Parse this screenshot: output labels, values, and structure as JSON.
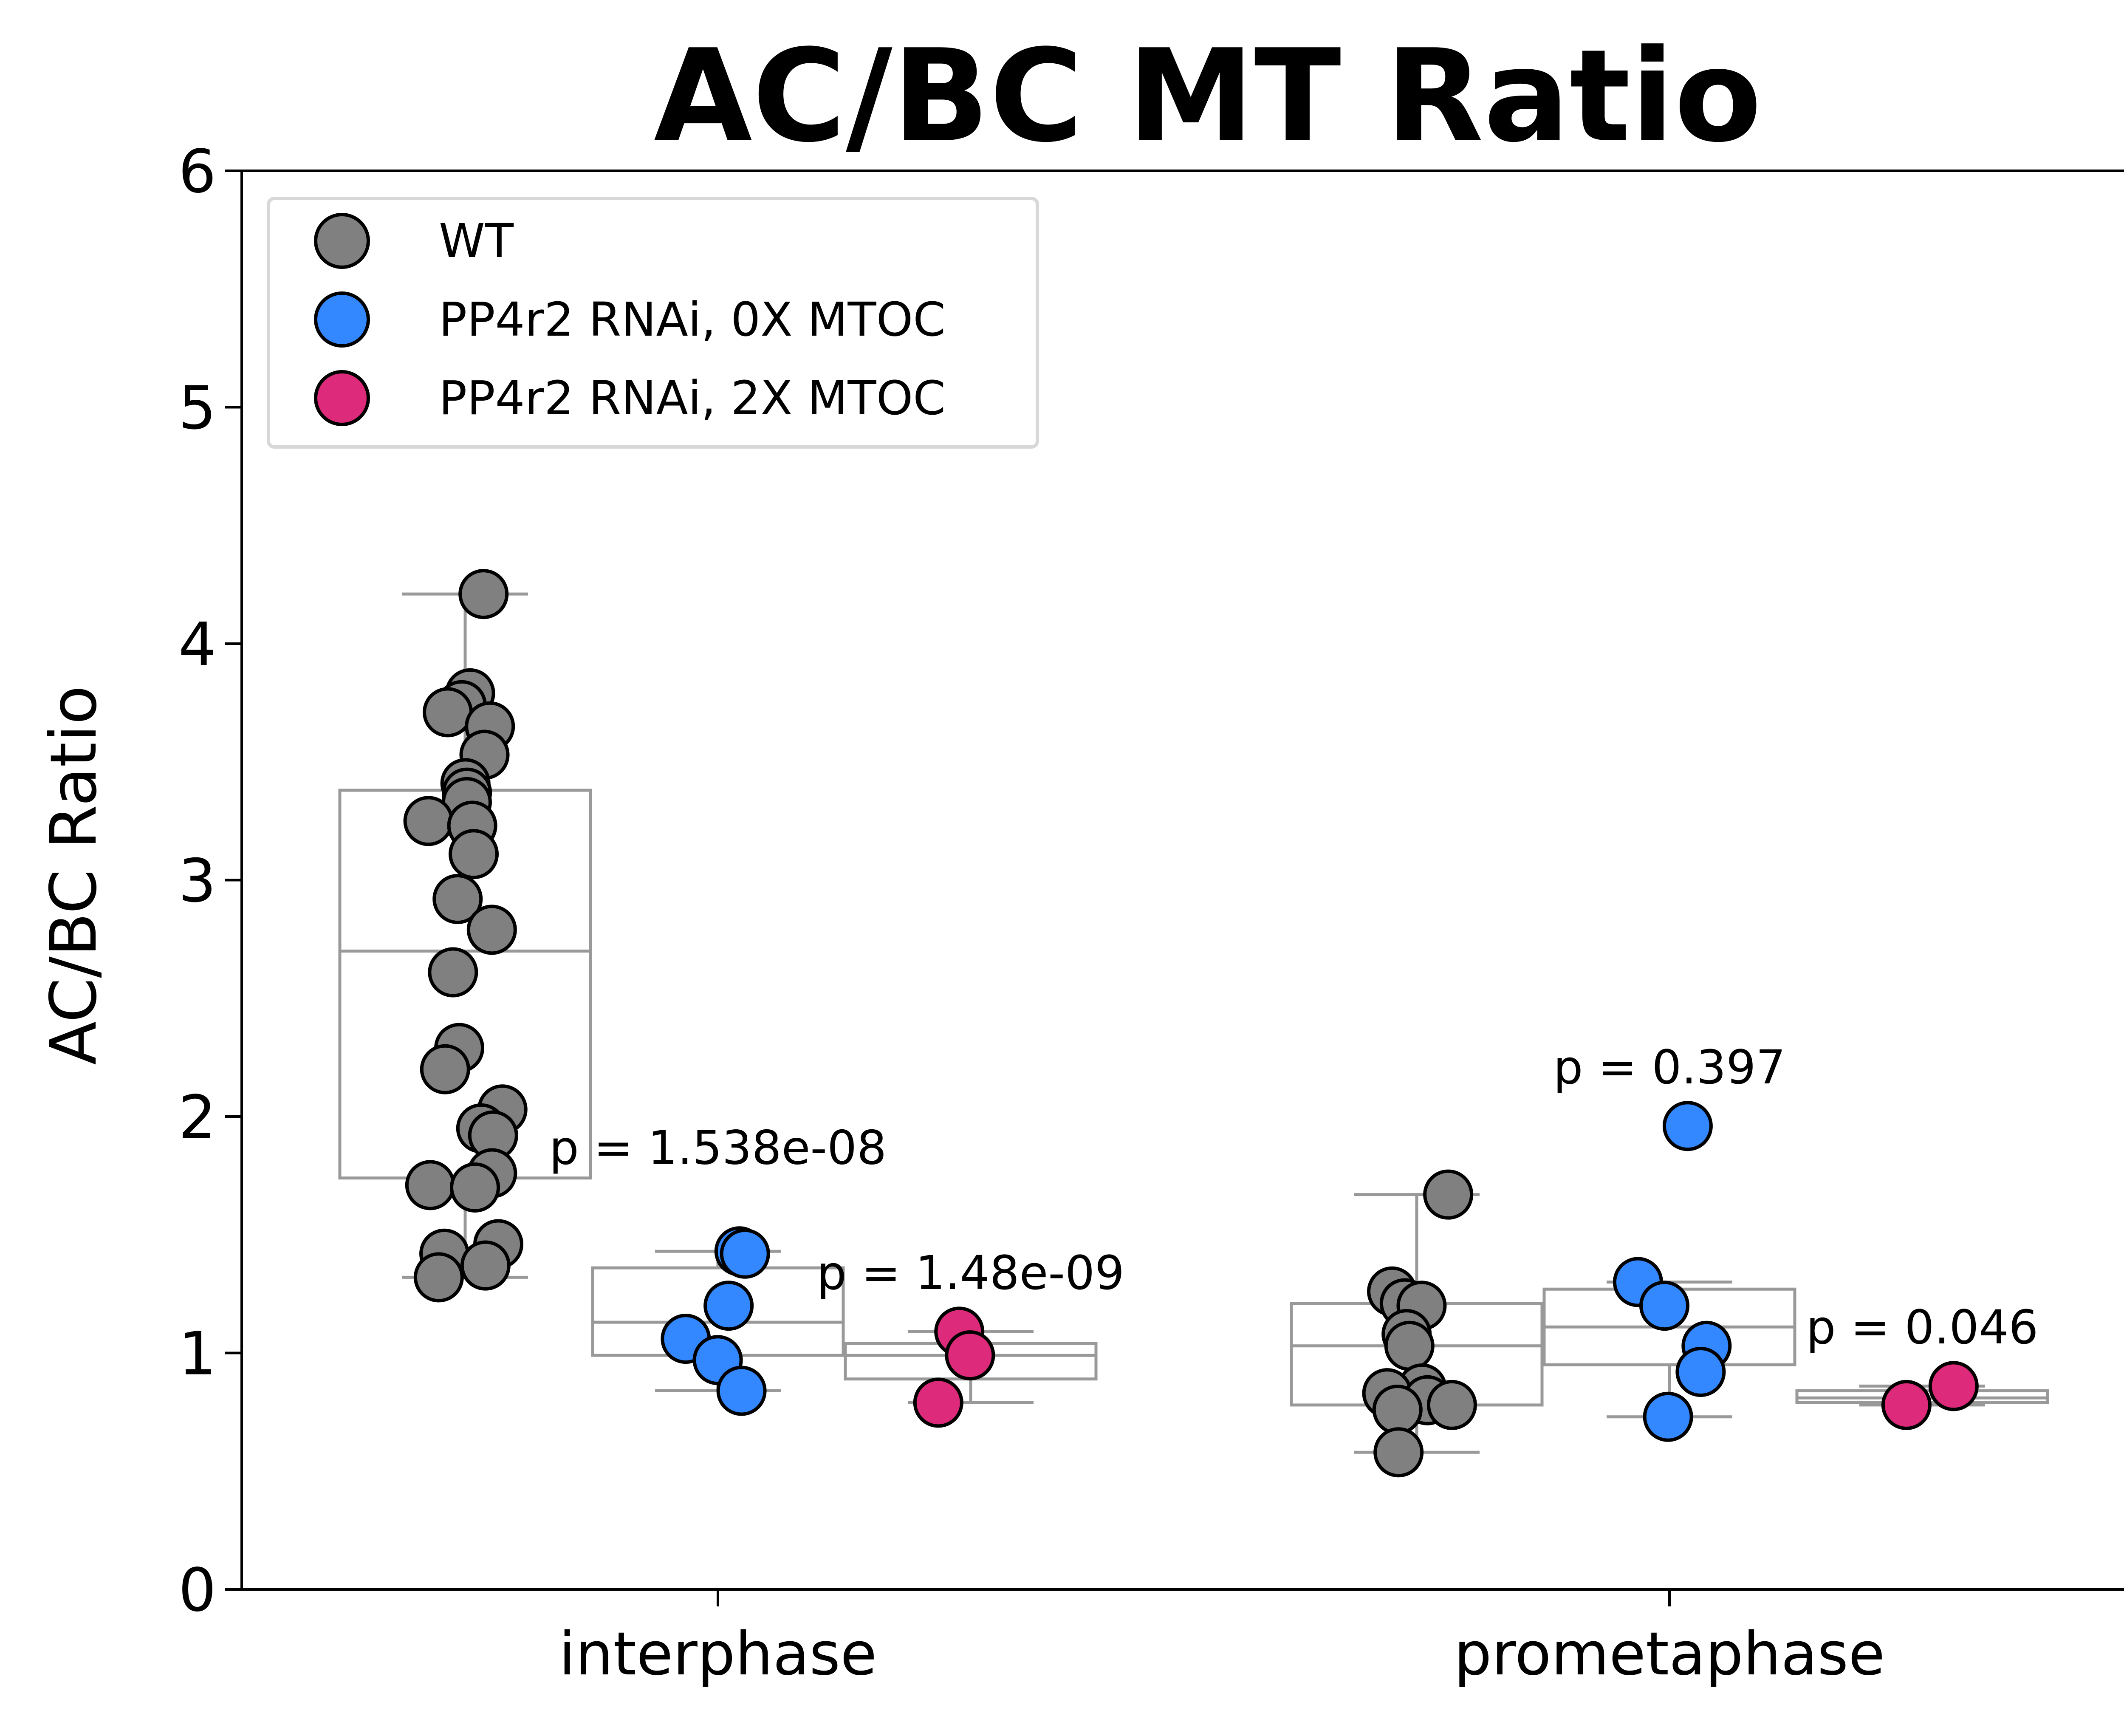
{
  "chart_data": {
    "type": "box",
    "title": "AC/BC MT Ratio",
    "xlabel": "",
    "ylabel": "AC/BC Ratio",
    "ylim": [
      0,
      6
    ],
    "yticks": [
      "0",
      "1",
      "2",
      "3",
      "4",
      "5",
      "6"
    ],
    "categories": [
      "interphase",
      "prometaphase"
    ],
    "legend": {
      "placement": "top-left",
      "entries": [
        {
          "name": "WT",
          "color": "#808080"
        },
        {
          "name": "PP4r2 RNAi, 0X MTOC",
          "color": "#3388ff"
        },
        {
          "name": "PP4r2 RNAi, 2X MTOC",
          "color": "#dd2a7b"
        }
      ]
    },
    "series": [
      {
        "name": "WT",
        "color": "#808080",
        "groups": [
          {
            "category": "interphase",
            "box": {
              "min": 1.32,
              "q1": 1.74,
              "median": 2.7,
              "q3": 3.38,
              "max": 4.21
            },
            "points": [
              4.21,
              3.79,
              3.74,
              3.71,
              3.65,
              3.53,
              3.41,
              3.37,
              3.33,
              3.25,
              3.23,
              3.11,
              2.92,
              2.79,
              2.61,
              2.29,
              2.2,
              2.03,
              1.95,
              1.92,
              1.76,
              1.71,
              1.7,
              1.46,
              1.42,
              1.37,
              1.32
            ]
          },
          {
            "category": "prometaphase",
            "box": {
              "min": 0.58,
              "q1": 0.78,
              "median": 1.03,
              "q3": 1.21,
              "max": 1.67
            },
            "points": [
              1.67,
              1.26,
              1.21,
              1.2,
              1.08,
              1.03,
              0.85,
              0.83,
              0.8,
              0.78,
              0.76,
              0.58
            ]
          }
        ]
      },
      {
        "name": "PP4r2 RNAi, 0X MTOC",
        "color": "#3388ff",
        "groups": [
          {
            "category": "interphase",
            "box": {
              "min": 0.84,
              "q1": 0.99,
              "median": 1.13,
              "q3": 1.36,
              "max": 1.43
            },
            "points": [
              1.43,
              1.42,
              1.2,
              1.06,
              0.97,
              0.84
            ]
          },
          {
            "category": "prometaphase",
            "box": {
              "min": 0.73,
              "q1": 0.95,
              "median": 1.11,
              "q3": 1.27,
              "max": 1.3
            },
            "points": [
              1.96,
              1.3,
              1.2,
              1.03,
              0.92,
              0.73
            ]
          }
        ]
      },
      {
        "name": "PP4r2 RNAi, 2X MTOC",
        "color": "#dd2a7b",
        "groups": [
          {
            "category": "interphase",
            "box": {
              "min": 0.79,
              "q1": 0.89,
              "median": 0.99,
              "q3": 1.04,
              "max": 1.09
            },
            "points": [
              1.09,
              0.99,
              0.79
            ]
          },
          {
            "category": "prometaphase",
            "box": {
              "min": 0.78,
              "q1": 0.79,
              "median": 0.81,
              "q3": 0.84,
              "max": 0.86
            },
            "points": [
              0.86,
              0.78
            ]
          }
        ]
      }
    ],
    "annotations": [
      {
        "text": "p = 1.538e-08",
        "category": "interphase",
        "series": "PP4r2 RNAi, 0X MTOC",
        "y": 1.8
      },
      {
        "text": "p = 1.48e-09",
        "category": "interphase",
        "series": "PP4r2 RNAi, 2X MTOC",
        "y": 1.27
      },
      {
        "text": "p = 0.397",
        "category": "prometaphase",
        "series": "PP4r2 RNAi, 0X MTOC",
        "y": 2.14
      },
      {
        "text": "p = 0.046",
        "category": "prometaphase",
        "series": "PP4r2 RNAi, 2X MTOC",
        "y": 1.04
      }
    ]
  }
}
